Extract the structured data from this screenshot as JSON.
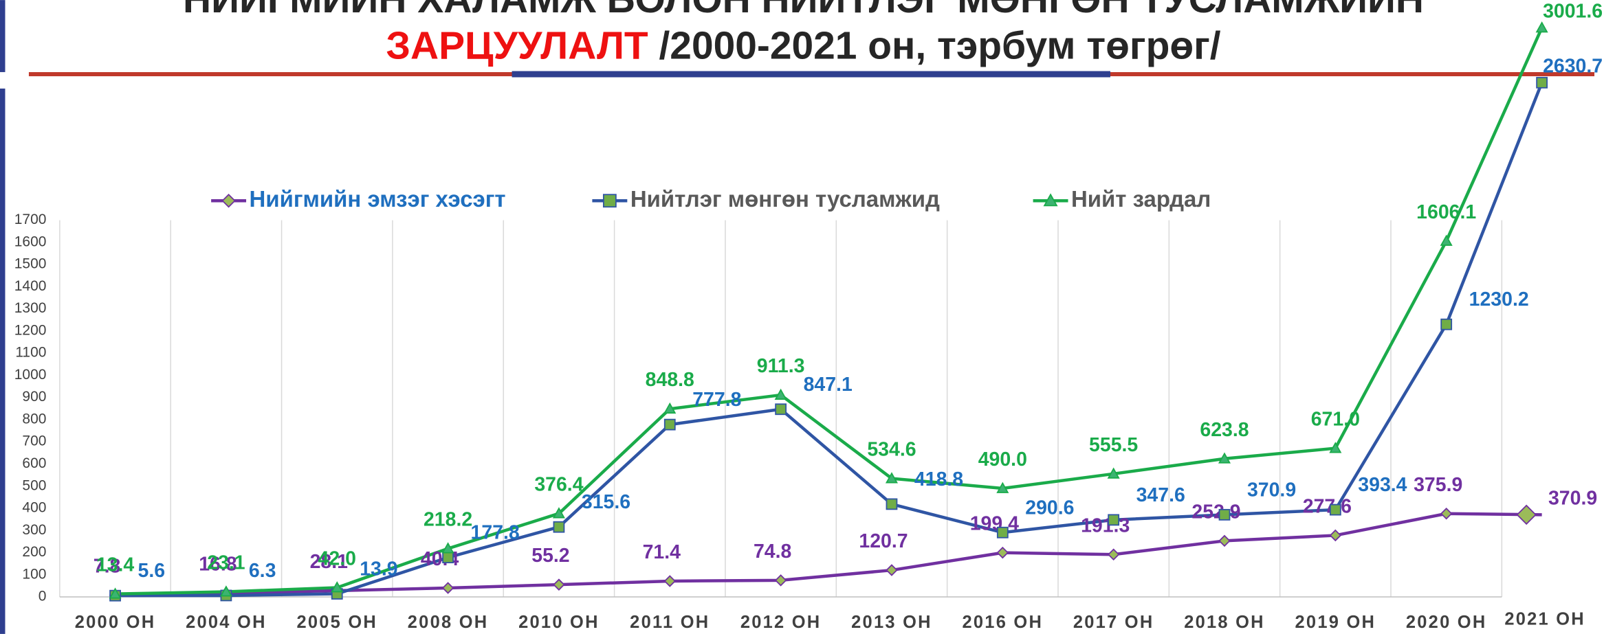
{
  "chart_data": {
    "type": "line",
    "title": "НИЙГМИЙН ХАЛАМЖ БОЛОН НИЙТЛЭГ МӨНГӨН ТУСЛАМЖИЙН",
    "title_highlight": "ЗАРЦУУЛАЛТ",
    "title_rest": "/2000-2021 он, тэрбум төгрөг/",
    "categories": [
      "2000 ОН",
      "2004 ОН",
      "2005 ОН",
      "2008 ОН",
      "2010 ОН",
      "2011 ОН",
      "2012 ОН",
      "2013 ОН",
      "2016 ОН",
      "2017 ОН",
      "2018 ОН",
      "2019 ОН",
      "2020 ОН",
      "2021 ОН"
    ],
    "series": [
      {
        "name": "Нийгмийн эмзэг хэсэгт",
        "color": "#7030a0",
        "values": [
          7.8,
          16.8,
          28.1,
          40.4,
          55.2,
          71.4,
          74.8,
          120.7,
          199.4,
          191.3,
          252.9,
          277.6,
          375.9,
          370.9
        ],
        "value_labels": [
          "7.8",
          "16.8",
          "28.1",
          "40.4",
          "55.2",
          "71.4",
          "74.8",
          "120.7",
          "199.4",
          "191.3",
          "252.9",
          "277.6",
          "375.9",
          "370.9"
        ]
      },
      {
        "name": "Нийтлэг мөнгөн тусламжид",
        "color": "#2f55a4",
        "values": [
          5.6,
          6.3,
          13.9,
          177.8,
          315.6,
          777.8,
          847.1,
          418.8,
          290.6,
          347.6,
          370.9,
          393.4,
          1230.2,
          2630.7
        ],
        "value_labels": [
          "5.6",
          "6.3",
          "13.9",
          "177.8",
          "315.6",
          "777.8",
          "847.1",
          "418.8",
          "290.6",
          "347.6",
          "370.9",
          "393.4",
          "1230.2",
          "2630.7"
        ]
      },
      {
        "name": "Нийт зардал",
        "color": "#1aab4a",
        "values": [
          13.4,
          23.1,
          42.0,
          218.2,
          376.4,
          848.8,
          911.3,
          534.6,
          490.0,
          555.5,
          623.8,
          671.0,
          1606.1,
          3001.6
        ],
        "value_labels": [
          "13.4",
          "23.1",
          "42.0",
          "218.2",
          "376.4",
          "848.8",
          "911.3",
          "534.6",
          "490.0",
          "555.5",
          "623.8",
          "671.0",
          "1606.1",
          "3001.6"
        ]
      }
    ],
    "ylim": [
      0,
      1700
    ],
    "yticks": [
      0,
      100,
      200,
      300,
      400,
      500,
      600,
      700,
      800,
      900,
      1000,
      1100,
      1200,
      1300,
      1400,
      1500,
      1600,
      1700
    ],
    "grid": true,
    "legend": "top"
  }
}
